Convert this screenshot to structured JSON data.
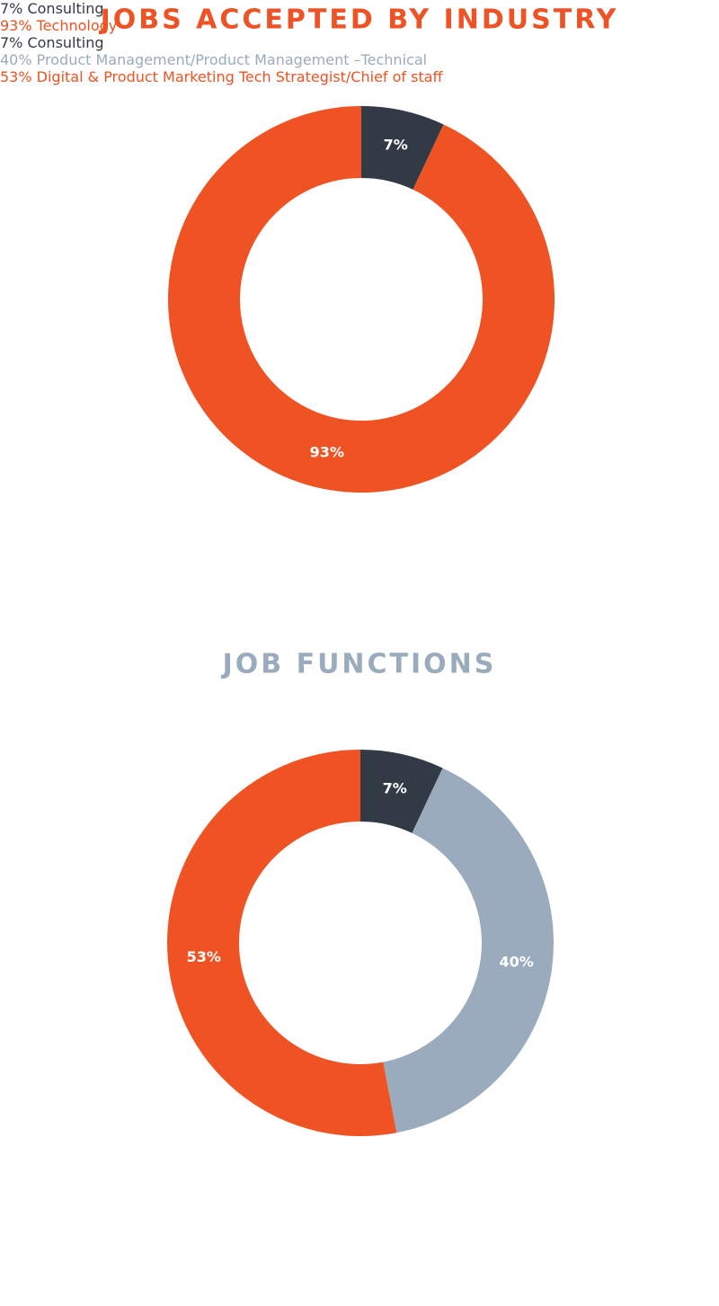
{
  "chart_data": [
    {
      "type": "donut",
      "title": "JOBS  ACCEPTED BY INDUSTRY",
      "title_color": "#ee5325",
      "categories": [
        "7% Consulting",
        "93% Technology"
      ],
      "values": [
        7,
        93
      ],
      "value_labels": [
        "7%",
        "93%"
      ],
      "colors": [
        "#323a46",
        "#ef5323"
      ]
    },
    {
      "type": "donut",
      "title": "JOB FUNCTIONS",
      "title_color": "#9aabbd",
      "categories": [
        "7% Consulting",
        "40% Product Management/Product\nManagement –Technical",
        "53% Digital & Product Marketing\nTech Strategist/Chief of staff"
      ],
      "values": [
        7,
        40,
        53
      ],
      "value_labels": [
        "7%",
        "40%",
        "53%"
      ],
      "colors": [
        "#323a46",
        "#9aabbd",
        "#ef5323"
      ]
    }
  ]
}
